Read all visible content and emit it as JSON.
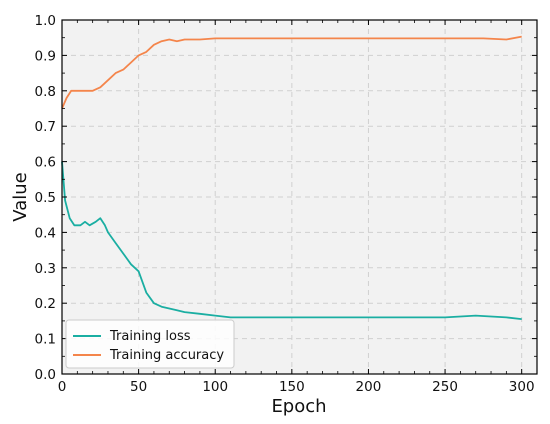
{
  "chart_data": {
    "type": "line",
    "xlabel": "Epoch",
    "ylabel": "Value",
    "xlim": [
      0,
      310
    ],
    "ylim": [
      0.0,
      1.0
    ],
    "x_ticks": [
      "0",
      "50",
      "100",
      "150",
      "200",
      "250",
      "300"
    ],
    "y_ticks": [
      "0.0",
      "0.1",
      "0.2",
      "0.3",
      "0.4",
      "0.5",
      "0.6",
      "0.7",
      "0.8",
      "0.9",
      "1.0"
    ],
    "grid": true,
    "legend_position": "bottom-left",
    "background": "#f2f2f2",
    "series": [
      {
        "name": "Training loss",
        "color": "#1aaea2",
        "x": [
          0,
          2,
          5,
          8,
          12,
          15,
          18,
          22,
          25,
          28,
          30,
          35,
          40,
          45,
          50,
          55,
          60,
          65,
          70,
          75,
          80,
          90,
          100,
          110,
          125,
          150,
          175,
          200,
          225,
          250,
          270,
          290,
          300
        ],
        "y": [
          0.6,
          0.49,
          0.44,
          0.42,
          0.42,
          0.43,
          0.42,
          0.43,
          0.44,
          0.42,
          0.4,
          0.37,
          0.34,
          0.31,
          0.29,
          0.23,
          0.2,
          0.19,
          0.185,
          0.18,
          0.175,
          0.17,
          0.165,
          0.16,
          0.16,
          0.16,
          0.16,
          0.16,
          0.16,
          0.16,
          0.165,
          0.16,
          0.155
        ]
      },
      {
        "name": "Training accuracy",
        "color": "#f4854b",
        "x": [
          0,
          3,
          6,
          10,
          15,
          20,
          25,
          30,
          35,
          40,
          45,
          50,
          55,
          60,
          65,
          70,
          75,
          80,
          90,
          100,
          110,
          125,
          150,
          175,
          200,
          225,
          250,
          275,
          290,
          300
        ],
        "y": [
          0.75,
          0.78,
          0.8,
          0.8,
          0.8,
          0.8,
          0.81,
          0.83,
          0.85,
          0.86,
          0.88,
          0.9,
          0.91,
          0.93,
          0.94,
          0.945,
          0.94,
          0.945,
          0.945,
          0.948,
          0.948,
          0.948,
          0.948,
          0.948,
          0.948,
          0.948,
          0.948,
          0.948,
          0.945,
          0.953
        ]
      }
    ]
  }
}
